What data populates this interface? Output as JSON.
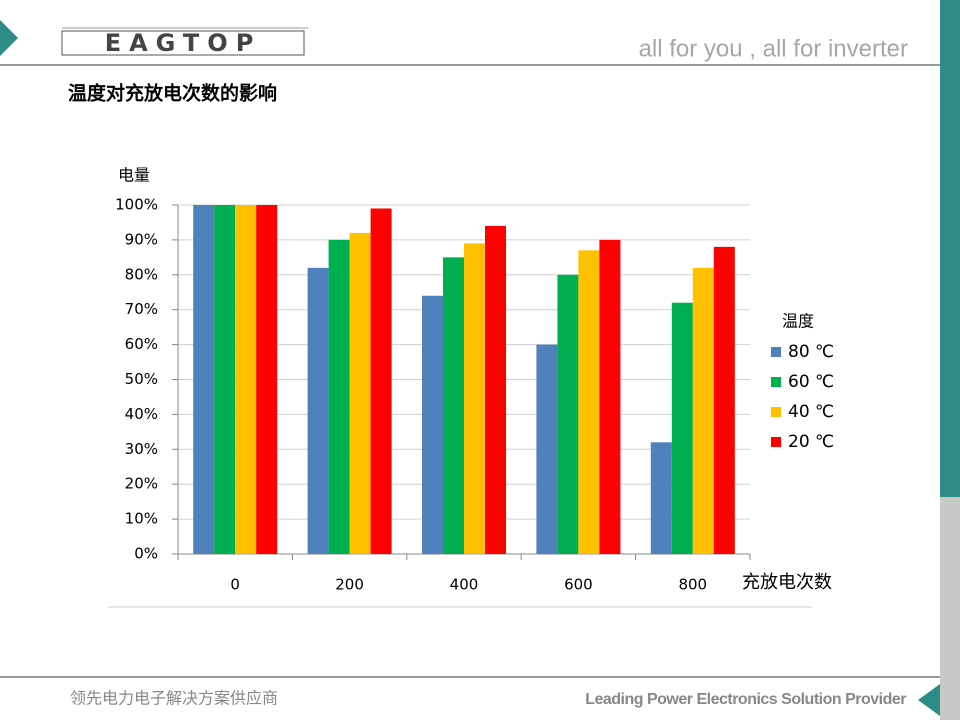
{
  "header": {
    "logo": "EAGTOP",
    "tagline": "all for you , all for inverter"
  },
  "title": "温度对充放电次数的影响",
  "chart_data": {
    "type": "bar",
    "y_label": "电量",
    "x_label": "充放电次数",
    "legend_title": "温度",
    "legend": "right",
    "grid": true,
    "categories": [
      "0",
      "200",
      "400",
      "600",
      "800"
    ],
    "series": [
      {
        "name": "80 ℃",
        "color": "#4f81bd",
        "values": [
          100,
          82,
          74,
          60,
          32
        ]
      },
      {
        "name": "60 ℃",
        "color": "#00b050",
        "values": [
          100,
          90,
          85,
          80,
          72
        ]
      },
      {
        "name": "40 ℃",
        "color": "#ffc000",
        "values": [
          100,
          92,
          89,
          87,
          82
        ]
      },
      {
        "name": "20 ℃",
        "color": "#ff0000",
        "values": [
          100,
          99,
          94,
          90,
          88
        ]
      }
    ],
    "ylim": [
      0,
      100
    ],
    "yticks": [
      {
        "value": 0,
        "label": "0%"
      },
      {
        "value": 10,
        "label": "10%"
      },
      {
        "value": 20,
        "label": "20%"
      },
      {
        "value": 30,
        "label": "30%"
      },
      {
        "value": 40,
        "label": "40%"
      },
      {
        "value": 50,
        "label": "50%"
      },
      {
        "value": 60,
        "label": "60%"
      },
      {
        "value": 70,
        "label": "70%"
      },
      {
        "value": 80,
        "label": "80%"
      },
      {
        "value": 90,
        "label": "90%"
      },
      {
        "value": 100,
        "label": "100%"
      }
    ]
  },
  "footer": {
    "left": "领先电力电子解决方案供应商",
    "right": "Leading Power Electronics Solution Provider"
  }
}
